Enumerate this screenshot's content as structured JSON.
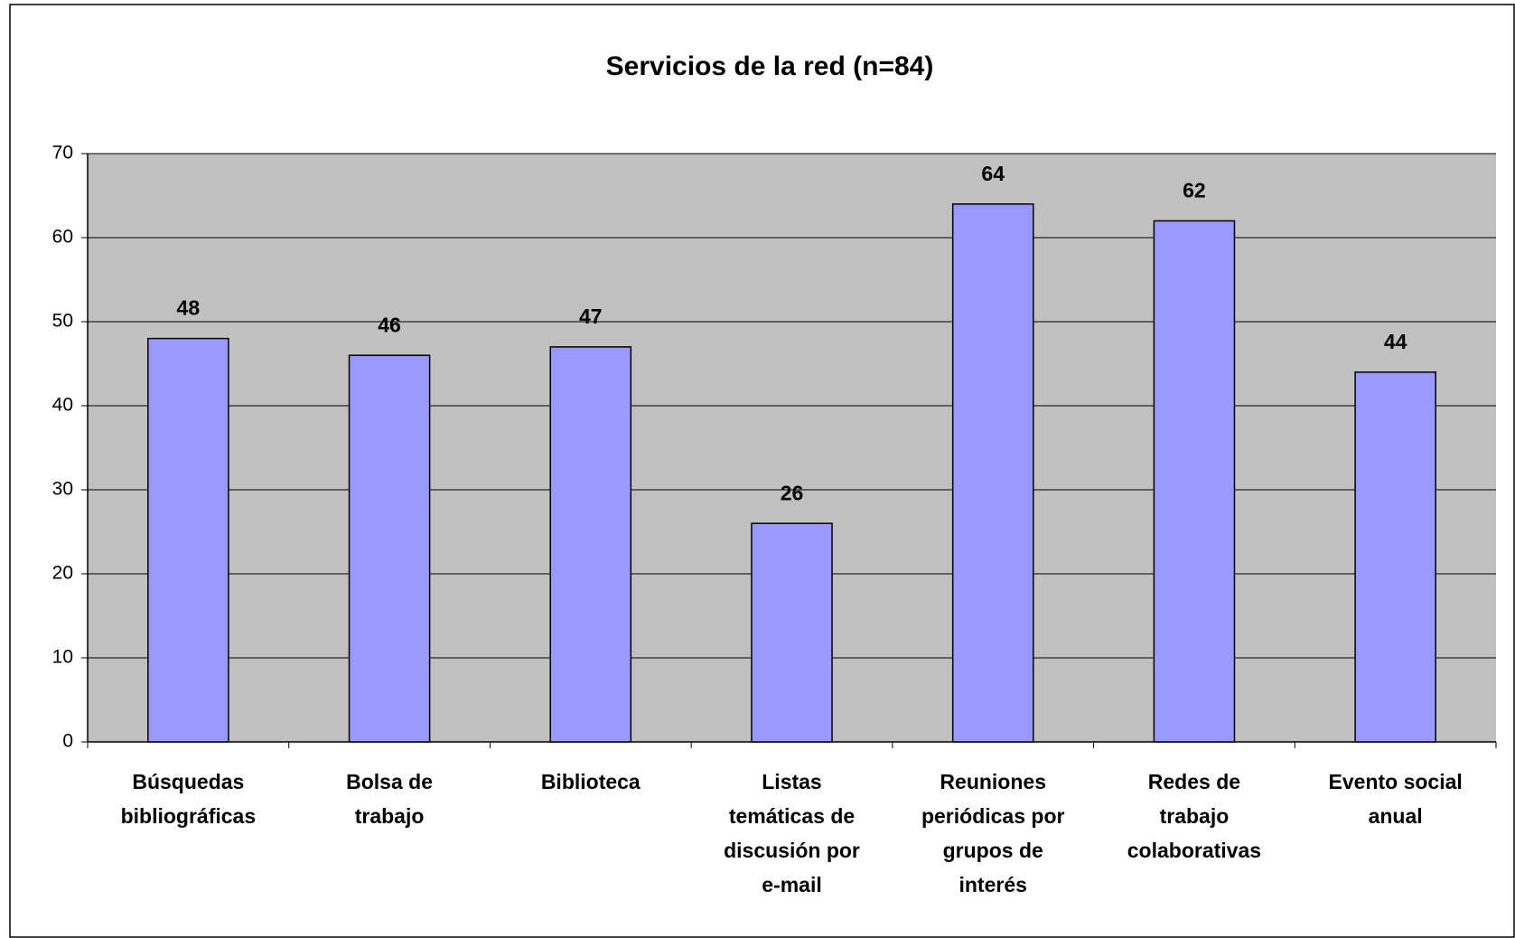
{
  "chart_data": {
    "type": "bar",
    "title": "Servicios de la red (n=84)",
    "categories": [
      [
        "Búsquedas",
        "bibliográficas"
      ],
      [
        "Bolsa de",
        "trabajo"
      ],
      [
        "Biblioteca"
      ],
      [
        "Listas",
        "temáticas de",
        "discusión por",
        "e-mail"
      ],
      [
        "Reuniones",
        "periódicas por",
        "grupos de",
        "interés"
      ],
      [
        "Redes de",
        "trabajo",
        "colaborativas"
      ],
      [
        "Evento social",
        "anual"
      ]
    ],
    "values": [
      48,
      46,
      47,
      26,
      64,
      62,
      44
    ],
    "color": "#9999ff",
    "ylim": [
      0,
      70
    ],
    "yticks": [
      0,
      10,
      20,
      30,
      40,
      50,
      60,
      70
    ],
    "grid": true
  }
}
